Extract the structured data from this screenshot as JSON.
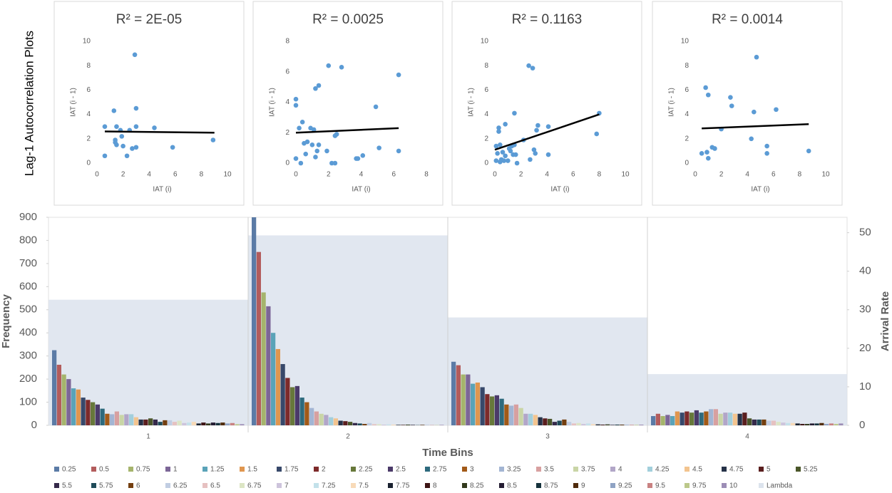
{
  "group_title": "Lag-1 Autocorrelation Plots",
  "chart_data": [
    {
      "type": "scatter",
      "title": "R² = 2E-05",
      "xlabel": "IAT (i)",
      "ylabel": "IAT (i - 1)",
      "color": "#5b9bd5",
      "xlim": [
        0,
        10
      ],
      "ylim": [
        0,
        10
      ],
      "xticks": [
        0,
        2,
        4,
        6,
        8,
        10
      ],
      "yticks": [
        0,
        2,
        4,
        6,
        8,
        10
      ],
      "x": [
        0.6,
        0.6,
        1.3,
        1.4,
        1.5,
        1.5,
        1.8,
        1.9,
        2.0,
        2.3,
        2.7,
        2.9,
        3.0,
        3.0,
        3.0,
        4.4,
        5.8,
        8.9,
        1.4,
        2.5
      ],
      "y": [
        3.0,
        0.6,
        4.3,
        1.9,
        1.5,
        3.0,
        2.7,
        2.2,
        1.4,
        0.6,
        1.2,
        8.9,
        4.5,
        3.0,
        1.3,
        2.9,
        1.3,
        1.9,
        1.7,
        2.7
      ],
      "trendline": {
        "x": [
          0.6,
          9.0
        ],
        "y": [
          2.6,
          2.5
        ],
        "color": "#000000"
      }
    },
    {
      "type": "scatter",
      "title": "R² = 0.0025",
      "xlabel": "IAT (i)",
      "ylabel": "IAT (i - 1)",
      "color": "#5b9bd5",
      "xlim": [
        0,
        8
      ],
      "ylim": [
        0,
        8
      ],
      "xticks": [
        0,
        2,
        4,
        6,
        8
      ],
      "yticks": [
        0,
        2,
        4,
        6,
        8
      ],
      "x": [
        0.0,
        0.0,
        0.0,
        0.2,
        0.3,
        0.4,
        0.5,
        0.6,
        0.7,
        0.9,
        1.0,
        1.1,
        1.2,
        1.2,
        1.4,
        1.4,
        1.3,
        1.9,
        2.0,
        2.2,
        2.4,
        2.5,
        2.4,
        2.8,
        3.7,
        3.8,
        4.1,
        4.9,
        5.1,
        6.3,
        6.3
      ],
      "y": [
        4.2,
        3.8,
        0.3,
        2.3,
        0.0,
        2.7,
        1.3,
        0.6,
        1.4,
        2.3,
        1.2,
        2.2,
        0.4,
        4.9,
        5.1,
        1.2,
        0.8,
        0.8,
        6.4,
        0.0,
        0.0,
        1.9,
        1.8,
        6.3,
        0.3,
        0.3,
        0.5,
        3.7,
        1.0,
        5.8,
        0.8
      ],
      "trendline": {
        "x": [
          0.0,
          6.3
        ],
        "y": [
          2.0,
          2.3
        ],
        "color": "#000000"
      }
    },
    {
      "type": "scatter",
      "title": "R² = 0.1163",
      "xlabel": "IAT (i)",
      "ylabel": "IAT (i - 1)",
      "color": "#5b9bd5",
      "xlim": [
        0,
        10
      ],
      "ylim": [
        0,
        10
      ],
      "xticks": [
        0,
        2,
        4,
        6,
        8,
        10
      ],
      "yticks": [
        0,
        2,
        4,
        6,
        8,
        10
      ],
      "x": [
        0.1,
        0.2,
        0.3,
        0.3,
        0.4,
        0.4,
        0.5,
        0.6,
        0.7,
        0.8,
        0.8,
        1.0,
        1.1,
        1.2,
        1.3,
        1.4,
        1.5,
        1.6,
        1.7,
        2.6,
        2.7,
        2.9,
        3.0,
        3.1,
        3.2,
        3.3,
        4.1,
        4.1,
        7.8,
        8.0,
        2.2,
        1.5,
        0.1
      ],
      "y": [
        1.4,
        0.8,
        2.9,
        2.6,
        1.5,
        0.1,
        0.3,
        0.9,
        0.2,
        3.2,
        0.6,
        0.2,
        1.2,
        1.0,
        1.4,
        0.7,
        4.1,
        0.7,
        0.0,
        8.0,
        0.3,
        7.8,
        1.1,
        0.8,
        2.7,
        3.1,
        3.0,
        0.7,
        2.4,
        4.1,
        1.9,
        1.5,
        0.2
      ],
      "trendline": {
        "x": [
          0.0,
          8.0
        ],
        "y": [
          1.1,
          4.0
        ],
        "color": "#000000"
      }
    },
    {
      "type": "scatter",
      "title": "R² = 0.0014",
      "xlabel": "IAT (i)",
      "ylabel": "IAT (i - 1)",
      "color": "#5b9bd5",
      "xlim": [
        0,
        10
      ],
      "ylim": [
        0,
        10
      ],
      "xticks": [
        0,
        2,
        4,
        6,
        8,
        10
      ],
      "yticks": [
        0,
        2,
        4,
        6,
        8,
        10
      ],
      "x": [
        0.5,
        0.8,
        0.9,
        1.0,
        1.0,
        1.3,
        1.5,
        2.0,
        2.7,
        2.8,
        4.3,
        4.5,
        4.7,
        5.5,
        5.5,
        6.2,
        8.7
      ],
      "y": [
        0.8,
        6.2,
        0.9,
        5.6,
        0.4,
        1.3,
        1.2,
        2.8,
        5.4,
        4.7,
        2.0,
        4.2,
        8.7,
        1.4,
        0.8,
        4.4,
        1.0
      ],
      "trendline": {
        "x": [
          0.5,
          8.7
        ],
        "y": [
          2.85,
          3.2
        ],
        "color": "#000000"
      }
    },
    {
      "type": "bar",
      "xlabel": "Time Bins",
      "ylabel": "Frequency",
      "y2label": "Arrival Rate",
      "legend": "bottom",
      "categories": [
        "1",
        "2",
        "3",
        "4"
      ],
      "ylim": [
        0,
        900
      ],
      "yticks": [
        0,
        100,
        200,
        300,
        400,
        500,
        600,
        700,
        800,
        900
      ],
      "y2lim": [
        0,
        54
      ],
      "y2ticks": [
        0,
        10,
        20,
        30,
        40,
        50
      ],
      "series": [
        {
          "name": "0.25",
          "color": "#5b7ba6",
          "values": [
            325,
            900,
            275,
            40
          ]
        },
        {
          "name": "0.5",
          "color": "#b35c5c",
          "values": [
            262,
            750,
            260,
            50
          ]
        },
        {
          "name": "0.75",
          "color": "#a5b46c",
          "values": [
            220,
            575,
            220,
            40
          ]
        },
        {
          "name": "1",
          "color": "#7c6697",
          "values": [
            200,
            515,
            220,
            45
          ]
        },
        {
          "name": "1.25",
          "color": "#5aa3b8",
          "values": [
            160,
            400,
            180,
            40
          ]
        },
        {
          "name": "1.5",
          "color": "#e0964f",
          "values": [
            155,
            330,
            185,
            60
          ]
        },
        {
          "name": "1.75",
          "color": "#37486a",
          "values": [
            120,
            265,
            165,
            55
          ]
        },
        {
          "name": "2",
          "color": "#7d2a2a",
          "values": [
            110,
            205,
            135,
            60
          ]
        },
        {
          "name": "2.25",
          "color": "#67783a",
          "values": [
            100,
            165,
            125,
            55
          ]
        },
        {
          "name": "2.5",
          "color": "#4b3a69",
          "values": [
            90,
            170,
            130,
            65
          ]
        },
        {
          "name": "2.75",
          "color": "#2d6a7d",
          "values": [
            72,
            120,
            115,
            55
          ]
        },
        {
          "name": "3",
          "color": "#a25a18",
          "values": [
            50,
            100,
            90,
            60
          ]
        },
        {
          "name": "3.25",
          "color": "#a3b5d3",
          "values": [
            48,
            75,
            85,
            70
          ]
        },
        {
          "name": "3.5",
          "color": "#d8a0a0",
          "values": [
            60,
            60,
            90,
            70
          ]
        },
        {
          "name": "3.75",
          "color": "#c9d5a6",
          "values": [
            45,
            50,
            75,
            50
          ]
        },
        {
          "name": "4",
          "color": "#b2a6c8",
          "values": [
            48,
            45,
            50,
            55
          ]
        },
        {
          "name": "4.25",
          "color": "#a2cfdc",
          "values": [
            48,
            35,
            50,
            55
          ]
        },
        {
          "name": "4.5",
          "color": "#f3c48f",
          "values": [
            35,
            30,
            45,
            50
          ]
        },
        {
          "name": "4.75",
          "color": "#263248",
          "values": [
            25,
            20,
            35,
            50
          ]
        },
        {
          "name": "5",
          "color": "#5a1e1e",
          "values": [
            25,
            18,
            30,
            55
          ]
        },
        {
          "name": "5.25",
          "color": "#4a5629",
          "values": [
            30,
            15,
            28,
            30
          ]
        },
        {
          "name": "5.5",
          "color": "#35294a",
          "values": [
            25,
            10,
            15,
            25
          ]
        },
        {
          "name": "5.75",
          "color": "#1f4b59",
          "values": [
            15,
            8,
            20,
            25
          ]
        },
        {
          "name": "6",
          "color": "#743f10",
          "values": [
            22,
            6,
            25,
            25
          ]
        },
        {
          "name": "6.25",
          "color": "#c1cde2",
          "values": [
            22,
            10,
            15,
            20
          ]
        },
        {
          "name": "6.5",
          "color": "#e6c1c1",
          "values": [
            15,
            5,
            8,
            20
          ]
        },
        {
          "name": "6.75",
          "color": "#dce5c4",
          "values": [
            20,
            5,
            10,
            15
          ]
        },
        {
          "name": "7",
          "color": "#cdc4dc",
          "values": [
            10,
            3,
            6,
            12
          ]
        },
        {
          "name": "7.25",
          "color": "#c3e1ea",
          "values": [
            12,
            4,
            8,
            10
          ]
        },
        {
          "name": "7.5",
          "color": "#f8dab8",
          "values": [
            15,
            3,
            5,
            10
          ]
        },
        {
          "name": "7.75",
          "color": "#1a2230",
          "values": [
            8,
            2,
            4,
            8
          ]
        },
        {
          "name": "8",
          "color": "#3d1414",
          "values": [
            12,
            2,
            3,
            6
          ]
        },
        {
          "name": "8.25",
          "color": "#32391c",
          "values": [
            8,
            3,
            4,
            6
          ]
        },
        {
          "name": "8.5",
          "color": "#241c32",
          "values": [
            12,
            2,
            2,
            8
          ]
        },
        {
          "name": "8.75",
          "color": "#15323c",
          "values": [
            10,
            1,
            3,
            8
          ]
        },
        {
          "name": "9",
          "color": "#4f2b0b",
          "values": [
            12,
            2,
            3,
            10
          ]
        },
        {
          "name": "9.25",
          "color": "#8fa3c4",
          "values": [
            8,
            1,
            2,
            6
          ]
        },
        {
          "name": "9.5",
          "color": "#c98282",
          "values": [
            10,
            1,
            2,
            8
          ]
        },
        {
          "name": "9.75",
          "color": "#bcc88a",
          "values": [
            5,
            1,
            2,
            6
          ]
        },
        {
          "name": "10",
          "color": "#9c8db6",
          "values": [
            5,
            2,
            3,
            8
          ]
        },
        {
          "name": "Lambda",
          "color": "#dce3ed",
          "type": "area",
          "axis": "y2",
          "values": [
            32.6,
            49.3,
            28.0,
            13.3
          ]
        }
      ]
    }
  ]
}
